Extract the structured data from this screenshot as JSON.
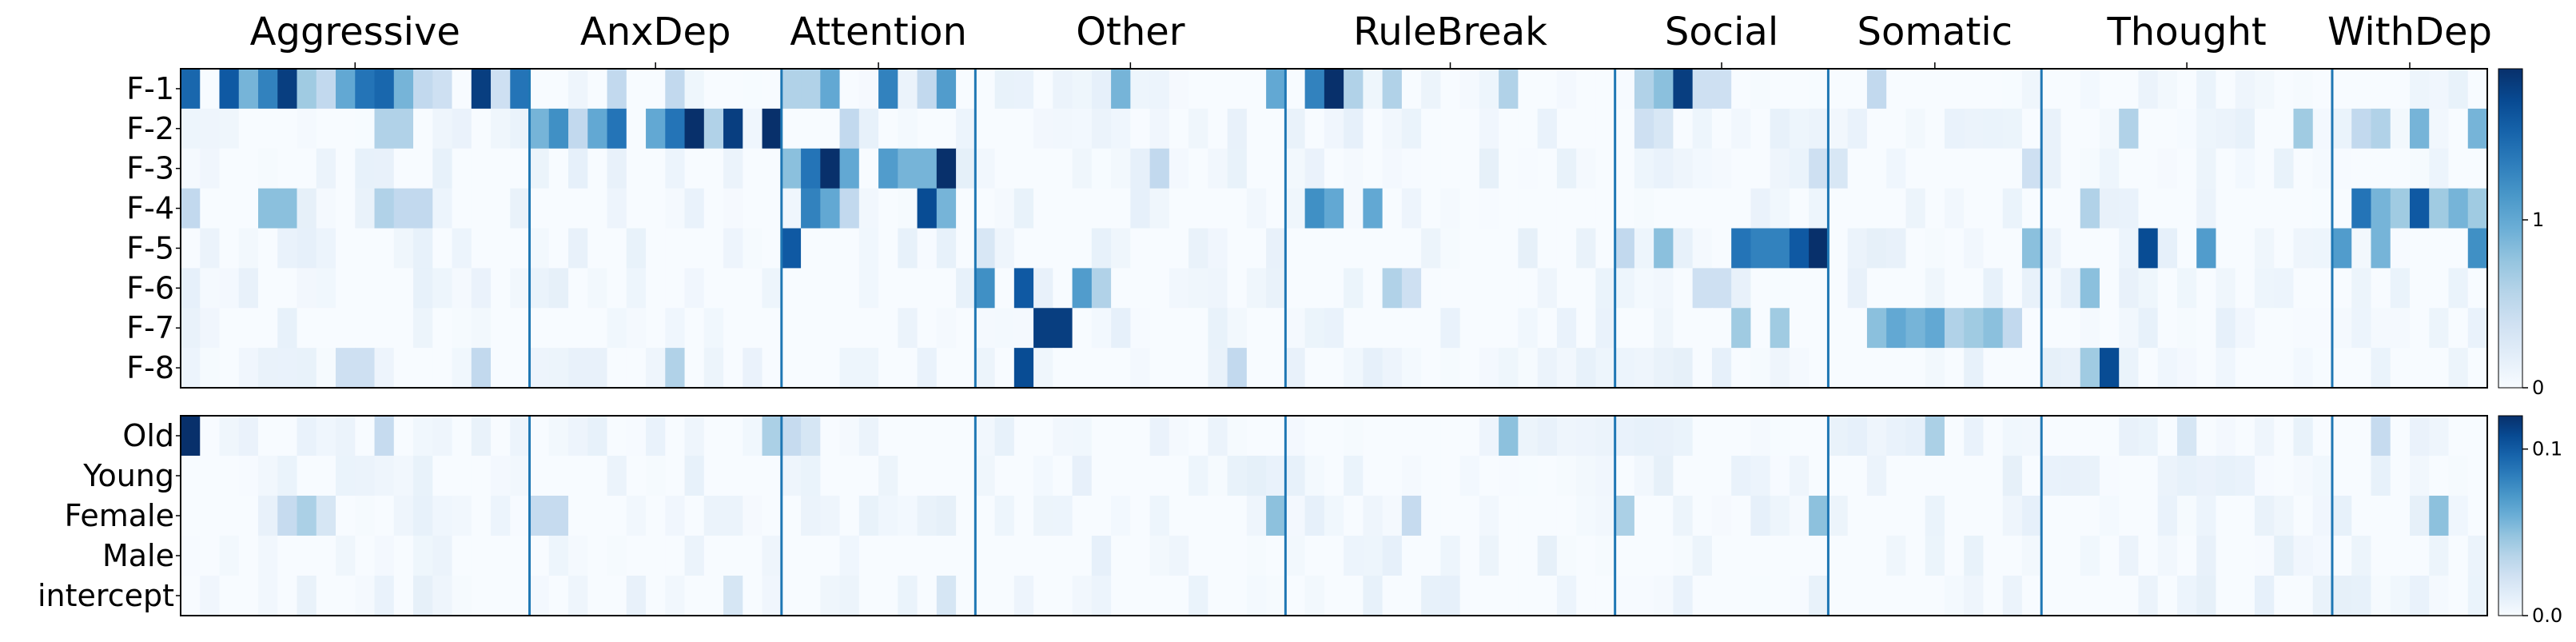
{
  "chart_data": {
    "type": "heatmap",
    "colormap": "Blues",
    "groups": [
      {
        "name": "Aggressive",
        "cols": 18
      },
      {
        "name": "AnxDep",
        "cols": 13
      },
      {
        "name": "Attention",
        "cols": 10
      },
      {
        "name": "Other",
        "cols": 16
      },
      {
        "name": "RuleBreak",
        "cols": 17
      },
      {
        "name": "Social",
        "cols": 11
      },
      {
        "name": "Somatic",
        "cols": 11
      },
      {
        "name": "Thought",
        "cols": 15
      },
      {
        "name": "WithDep",
        "cols": 8
      }
    ],
    "panels": [
      {
        "rows": [
          "F-1",
          "F-2",
          "F-3",
          "F-4",
          "F-5",
          "F-6",
          "F-7",
          "F-8"
        ],
        "colorbar": {
          "min": 0,
          "max": 1.9,
          "ticks": [
            {
              "value": 0,
              "label": "0"
            },
            {
              "value": 1,
              "label": "1"
            }
          ]
        },
        "highlights": [
          {
            "row": 0,
            "col": 0,
            "v": 1.5
          },
          {
            "row": 0,
            "col": 2,
            "v": 1.6
          },
          {
            "row": 0,
            "col": 3,
            "v": 0.9
          },
          {
            "row": 0,
            "col": 4,
            "v": 1.3
          },
          {
            "row": 0,
            "col": 5,
            "v": 1.8
          },
          {
            "row": 0,
            "col": 6,
            "v": 0.7
          },
          {
            "row": 0,
            "col": 7,
            "v": 0.5
          },
          {
            "row": 0,
            "col": 8,
            "v": 1.0
          },
          {
            "row": 0,
            "col": 9,
            "v": 1.4
          },
          {
            "row": 0,
            "col": 10,
            "v": 1.5
          },
          {
            "row": 0,
            "col": 11,
            "v": 0.9
          },
          {
            "row": 0,
            "col": 12,
            "v": 0.5
          },
          {
            "row": 0,
            "col": 13,
            "v": 0.4
          },
          {
            "row": 0,
            "col": 15,
            "v": 1.8
          },
          {
            "row": 0,
            "col": 16,
            "v": 0.4
          },
          {
            "row": 0,
            "col": 17,
            "v": 1.4
          },
          {
            "row": 0,
            "col": 22,
            "v": 0.5
          },
          {
            "row": 0,
            "col": 25,
            "v": 0.5
          },
          {
            "row": 0,
            "col": 31,
            "v": 0.6
          },
          {
            "row": 0,
            "col": 32,
            "v": 0.6
          },
          {
            "row": 0,
            "col": 33,
            "v": 1.0
          },
          {
            "row": 0,
            "col": 36,
            "v": 1.3
          },
          {
            "row": 0,
            "col": 38,
            "v": 0.5
          },
          {
            "row": 0,
            "col": 39,
            "v": 1.1
          },
          {
            "row": 0,
            "col": 48,
            "v": 0.9
          },
          {
            "row": 0,
            "col": 56,
            "v": 1.0
          },
          {
            "row": 0,
            "col": 58,
            "v": 1.3
          },
          {
            "row": 0,
            "col": 59,
            "v": 1.9
          },
          {
            "row": 0,
            "col": 60,
            "v": 0.6
          },
          {
            "row": 0,
            "col": 62,
            "v": 0.6
          },
          {
            "row": 0,
            "col": 68,
            "v": 0.6
          },
          {
            "row": 0,
            "col": 75,
            "v": 0.6
          },
          {
            "row": 0,
            "col": 76,
            "v": 0.8
          },
          {
            "row": 0,
            "col": 77,
            "v": 1.8
          },
          {
            "row": 0,
            "col": 78,
            "v": 0.4
          },
          {
            "row": 0,
            "col": 79,
            "v": 0.4
          },
          {
            "row": 0,
            "col": 87,
            "v": 0.5
          },
          {
            "row": 1,
            "col": 10,
            "v": 0.6
          },
          {
            "row": 1,
            "col": 11,
            "v": 0.6
          },
          {
            "row": 1,
            "col": 18,
            "v": 0.9
          },
          {
            "row": 1,
            "col": 19,
            "v": 1.2
          },
          {
            "row": 1,
            "col": 20,
            "v": 0.5
          },
          {
            "row": 1,
            "col": 21,
            "v": 1.0
          },
          {
            "row": 1,
            "col": 22,
            "v": 1.4
          },
          {
            "row": 1,
            "col": 24,
            "v": 1.0
          },
          {
            "row": 1,
            "col": 25,
            "v": 1.4
          },
          {
            "row": 1,
            "col": 26,
            "v": 1.9
          },
          {
            "row": 1,
            "col": 27,
            "v": 0.6
          },
          {
            "row": 1,
            "col": 28,
            "v": 1.8
          },
          {
            "row": 1,
            "col": 30,
            "v": 1.9
          },
          {
            "row": 1,
            "col": 34,
            "v": 0.5
          },
          {
            "row": 1,
            "col": 75,
            "v": 0.4
          },
          {
            "row": 1,
            "col": 76,
            "v": 0.3
          },
          {
            "row": 1,
            "col": 100,
            "v": 0.6
          },
          {
            "row": 1,
            "col": 109,
            "v": 0.7
          },
          {
            "row": 1,
            "col": 112,
            "v": 0.5
          },
          {
            "row": 1,
            "col": 113,
            "v": 0.6
          },
          {
            "row": 1,
            "col": 115,
            "v": 0.9
          },
          {
            "row": 1,
            "col": 118,
            "v": 0.9
          },
          {
            "row": 2,
            "col": 31,
            "v": 0.8
          },
          {
            "row": 2,
            "col": 32,
            "v": 1.4
          },
          {
            "row": 2,
            "col": 33,
            "v": 1.9
          },
          {
            "row": 2,
            "col": 34,
            "v": 1.0
          },
          {
            "row": 2,
            "col": 36,
            "v": 1.1
          },
          {
            "row": 2,
            "col": 37,
            "v": 0.9
          },
          {
            "row": 2,
            "col": 38,
            "v": 0.9
          },
          {
            "row": 2,
            "col": 39,
            "v": 1.9
          },
          {
            "row": 2,
            "col": 50,
            "v": 0.5
          },
          {
            "row": 2,
            "col": 84,
            "v": 0.4
          },
          {
            "row": 2,
            "col": 85,
            "v": 0.3
          },
          {
            "row": 2,
            "col": 95,
            "v": 0.4
          },
          {
            "row": 3,
            "col": 0,
            "v": 0.5
          },
          {
            "row": 3,
            "col": 4,
            "v": 0.8
          },
          {
            "row": 3,
            "col": 5,
            "v": 0.8
          },
          {
            "row": 3,
            "col": 10,
            "v": 0.6
          },
          {
            "row": 3,
            "col": 11,
            "v": 0.5
          },
          {
            "row": 3,
            "col": 12,
            "v": 0.5
          },
          {
            "row": 3,
            "col": 32,
            "v": 1.3
          },
          {
            "row": 3,
            "col": 33,
            "v": 1.0
          },
          {
            "row": 3,
            "col": 34,
            "v": 0.5
          },
          {
            "row": 3,
            "col": 38,
            "v": 1.7
          },
          {
            "row": 3,
            "col": 39,
            "v": 0.9
          },
          {
            "row": 3,
            "col": 58,
            "v": 1.2
          },
          {
            "row": 3,
            "col": 59,
            "v": 1.0
          },
          {
            "row": 3,
            "col": 61,
            "v": 1.0
          },
          {
            "row": 3,
            "col": 98,
            "v": 0.6
          },
          {
            "row": 3,
            "col": 112,
            "v": 1.4
          },
          {
            "row": 3,
            "col": 113,
            "v": 0.9
          },
          {
            "row": 3,
            "col": 114,
            "v": 0.7
          },
          {
            "row": 3,
            "col": 115,
            "v": 1.6
          },
          {
            "row": 3,
            "col": 116,
            "v": 0.7
          },
          {
            "row": 3,
            "col": 117,
            "v": 0.9
          },
          {
            "row": 3,
            "col": 118,
            "v": 0.7
          },
          {
            "row": 4,
            "col": 31,
            "v": 1.6
          },
          {
            "row": 4,
            "col": 41,
            "v": 0.3
          },
          {
            "row": 4,
            "col": 74,
            "v": 0.5
          },
          {
            "row": 4,
            "col": 76,
            "v": 0.8
          },
          {
            "row": 4,
            "col": 80,
            "v": 1.4
          },
          {
            "row": 4,
            "col": 81,
            "v": 1.3
          },
          {
            "row": 4,
            "col": 82,
            "v": 1.3
          },
          {
            "row": 4,
            "col": 83,
            "v": 1.6
          },
          {
            "row": 4,
            "col": 84,
            "v": 1.9
          },
          {
            "row": 4,
            "col": 95,
            "v": 0.8
          },
          {
            "row": 4,
            "col": 101,
            "v": 1.7
          },
          {
            "row": 4,
            "col": 104,
            "v": 1.1
          },
          {
            "row": 4,
            "col": 111,
            "v": 1.1
          },
          {
            "row": 4,
            "col": 113,
            "v": 0.9
          },
          {
            "row": 4,
            "col": 118,
            "v": 1.2
          },
          {
            "row": 5,
            "col": 41,
            "v": 1.2
          },
          {
            "row": 5,
            "col": 43,
            "v": 1.6
          },
          {
            "row": 5,
            "col": 46,
            "v": 1.1
          },
          {
            "row": 5,
            "col": 47,
            "v": 0.6
          },
          {
            "row": 5,
            "col": 62,
            "v": 0.6
          },
          {
            "row": 5,
            "col": 63,
            "v": 0.4
          },
          {
            "row": 5,
            "col": 78,
            "v": 0.4
          },
          {
            "row": 5,
            "col": 79,
            "v": 0.4
          },
          {
            "row": 5,
            "col": 98,
            "v": 0.8
          },
          {
            "row": 6,
            "col": 44,
            "v": 1.8
          },
          {
            "row": 6,
            "col": 45,
            "v": 1.8
          },
          {
            "row": 6,
            "col": 80,
            "v": 0.7
          },
          {
            "row": 6,
            "col": 82,
            "v": 0.7
          },
          {
            "row": 6,
            "col": 87,
            "v": 0.8
          },
          {
            "row": 6,
            "col": 88,
            "v": 1.0
          },
          {
            "row": 6,
            "col": 89,
            "v": 0.9
          },
          {
            "row": 6,
            "col": 90,
            "v": 1.0
          },
          {
            "row": 6,
            "col": 91,
            "v": 0.6
          },
          {
            "row": 6,
            "col": 92,
            "v": 0.7
          },
          {
            "row": 6,
            "col": 93,
            "v": 0.8
          },
          {
            "row": 6,
            "col": 94,
            "v": 0.5
          },
          {
            "row": 6,
            "col": 120,
            "v": 0.6
          },
          {
            "row": 7,
            "col": 8,
            "v": 0.4
          },
          {
            "row": 7,
            "col": 9,
            "v": 0.4
          },
          {
            "row": 7,
            "col": 15,
            "v": 0.5
          },
          {
            "row": 7,
            "col": 25,
            "v": 0.6
          },
          {
            "row": 7,
            "col": 43,
            "v": 1.7
          },
          {
            "row": 7,
            "col": 54,
            "v": 0.5
          },
          {
            "row": 7,
            "col": 98,
            "v": 0.7
          },
          {
            "row": 7,
            "col": 99,
            "v": 1.7
          }
        ]
      },
      {
        "rows": [
          "Old",
          "Young",
          "Female",
          "Male",
          "intercept"
        ],
        "colorbar": {
          "min": 0,
          "max": 0.12,
          "ticks": [
            {
              "value": 0,
              "label": "0.0"
            },
            {
              "value": 0.1,
              "label": "0.1"
            }
          ]
        },
        "highlights": [
          {
            "row": 0,
            "col": 0,
            "v": 0.12
          },
          {
            "row": 0,
            "col": 10,
            "v": 0.03
          },
          {
            "row": 0,
            "col": 30,
            "v": 0.04
          },
          {
            "row": 0,
            "col": 31,
            "v": 0.03
          },
          {
            "row": 0,
            "col": 32,
            "v": 0.02
          },
          {
            "row": 0,
            "col": 68,
            "v": 0.05
          },
          {
            "row": 0,
            "col": 90,
            "v": 0.04
          },
          {
            "row": 0,
            "col": 103,
            "v": 0.02
          },
          {
            "row": 0,
            "col": 113,
            "v": 0.03
          },
          {
            "row": 2,
            "col": 5,
            "v": 0.03
          },
          {
            "row": 2,
            "col": 6,
            "v": 0.04
          },
          {
            "row": 2,
            "col": 7,
            "v": 0.02
          },
          {
            "row": 2,
            "col": 18,
            "v": 0.03
          },
          {
            "row": 2,
            "col": 19,
            "v": 0.03
          },
          {
            "row": 2,
            "col": 56,
            "v": 0.05
          },
          {
            "row": 2,
            "col": 63,
            "v": 0.03
          },
          {
            "row": 2,
            "col": 74,
            "v": 0.04
          },
          {
            "row": 2,
            "col": 84,
            "v": 0.05
          },
          {
            "row": 2,
            "col": 116,
            "v": 0.05
          },
          {
            "row": 4,
            "col": 39,
            "v": 0.02
          },
          {
            "row": 4,
            "col": 28,
            "v": 0.02
          }
        ]
      }
    ]
  }
}
